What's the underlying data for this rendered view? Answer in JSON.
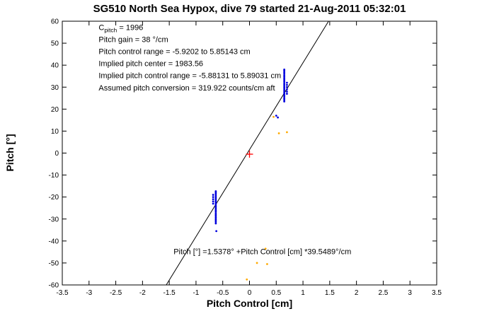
{
  "figure": {
    "title": "SG510 North Sea Hypox, dive 79 started 21-Aug-2011 05:32:01",
    "xlabel": "Pitch Control [cm]",
    "ylabel": "Pitch [°]"
  },
  "colors": {
    "axis": "#000000",
    "fit_line": "#000000",
    "primary_points": "#0000dd",
    "secondary_points": "#ffaa00",
    "center_marker": "#ff0000",
    "text": "#000000"
  },
  "chart_data": {
    "type": "scatter",
    "title": "SG510 North Sea Hypox, dive 79 started 21-Aug-2011 05:32:01",
    "xlabel": "Pitch Control [cm]",
    "ylabel": "Pitch [°]",
    "xlim": [
      -3.5,
      3.5
    ],
    "ylim": [
      -60,
      60
    ],
    "grid": false,
    "x_ticks": [
      -3.5,
      -3,
      -2.5,
      -2,
      -1.5,
      -1,
      -0.5,
      0,
      0.5,
      1,
      1.5,
      2,
      2.5,
      3,
      3.5
    ],
    "x_tick_labels": [
      "-3.5",
      "-3",
      "-2.5",
      "-2",
      "-1.5",
      "-1",
      "-0.5",
      "0",
      "0.5",
      "1",
      "1.5",
      "2",
      "2.5",
      "3",
      "3.5"
    ],
    "y_ticks": [
      -60,
      -50,
      -40,
      -30,
      -20,
      -10,
      0,
      10,
      20,
      30,
      40,
      50,
      60
    ],
    "y_tick_labels": [
      "-60",
      "-50",
      "-40",
      "-30",
      "-20",
      "-10",
      "0",
      "10",
      "20",
      "30",
      "40",
      "50",
      "60"
    ],
    "fit_line": {
      "slope": 39.5489,
      "intercept": 1.5378
    },
    "series": [
      {
        "name": "pitch-observations",
        "color": "#0000dd",
        "marker": "dot",
        "points": [
          [
            -0.63,
            -32
          ],
          [
            -0.63,
            -31.3
          ],
          [
            -0.63,
            -30.6
          ],
          [
            -0.63,
            -30
          ],
          [
            -0.63,
            -29.3
          ],
          [
            -0.63,
            -28.6
          ],
          [
            -0.63,
            -28
          ],
          [
            -0.63,
            -27.3
          ],
          [
            -0.63,
            -26.6
          ],
          [
            -0.63,
            -26
          ],
          [
            -0.63,
            -25.3
          ],
          [
            -0.63,
            -24.6
          ],
          [
            -0.63,
            -24
          ],
          [
            -0.63,
            -23.3
          ],
          [
            -0.63,
            -22.6
          ],
          [
            -0.63,
            -22
          ],
          [
            -0.63,
            -21.3
          ],
          [
            -0.63,
            -20.6
          ],
          [
            -0.63,
            -20
          ],
          [
            -0.63,
            -19.3
          ],
          [
            -0.63,
            -18.6
          ],
          [
            -0.63,
            -18
          ],
          [
            -0.63,
            -17.4
          ],
          [
            -0.68,
            -23
          ],
          [
            -0.68,
            -22
          ],
          [
            -0.68,
            -21
          ],
          [
            -0.68,
            -20
          ],
          [
            -0.68,
            -19
          ],
          [
            -0.62,
            -35.5
          ],
          [
            0.65,
            23.5
          ],
          [
            0.65,
            24.2
          ],
          [
            0.65,
            24.9
          ],
          [
            0.65,
            25.6
          ],
          [
            0.65,
            26.3
          ],
          [
            0.65,
            27
          ],
          [
            0.65,
            27.7
          ],
          [
            0.65,
            28.4
          ],
          [
            0.65,
            29.1
          ],
          [
            0.65,
            29.8
          ],
          [
            0.65,
            30.5
          ],
          [
            0.65,
            31.2
          ],
          [
            0.65,
            31.9
          ],
          [
            0.65,
            32.6
          ],
          [
            0.65,
            33.3
          ],
          [
            0.65,
            34
          ],
          [
            0.65,
            34.7
          ],
          [
            0.65,
            35.4
          ],
          [
            0.65,
            36.1
          ],
          [
            0.65,
            36.8
          ],
          [
            0.65,
            37.5
          ],
          [
            0.65,
            38
          ],
          [
            0.7,
            27
          ],
          [
            0.7,
            28
          ],
          [
            0.7,
            29
          ],
          [
            0.7,
            30
          ],
          [
            0.7,
            31
          ],
          [
            0.7,
            32
          ],
          [
            0.5,
            17
          ],
          [
            0.53,
            16.2
          ]
        ]
      },
      {
        "name": "secondary-observations",
        "color": "#ffaa00",
        "marker": "dot",
        "points": [
          [
            0.7,
            9.5
          ],
          [
            0.55,
            9
          ],
          [
            0.45,
            16.5
          ],
          [
            0.3,
            -43.5
          ],
          [
            0.33,
            -50.5
          ],
          [
            0.14,
            -50
          ],
          [
            -0.05,
            -57.5
          ]
        ]
      },
      {
        "name": "pitch-center-marker",
        "color": "#ff0000",
        "marker": "plus",
        "points": [
          [
            0,
            -0.5
          ]
        ]
      }
    ],
    "annotations": [
      {
        "x": -2.82,
        "y": 57,
        "segments": [
          {
            "t": "C"
          },
          {
            "t": "pitch",
            "sub": true
          },
          {
            "t": " = 1996"
          }
        ]
      },
      {
        "x": -2.82,
        "y": 51.5,
        "segments": [
          {
            "t": "Pitch gain = 38 °/cm"
          }
        ]
      },
      {
        "x": -2.82,
        "y": 46,
        "segments": [
          {
            "t": "Pitch control range = -5.9202 to 5.85143 cm"
          }
        ]
      },
      {
        "x": -2.82,
        "y": 40.5,
        "segments": [
          {
            "t": "Implied pitch center = 1983.56"
          }
        ]
      },
      {
        "x": -2.82,
        "y": 35,
        "segments": [
          {
            "t": "Implied pitch control range = -5.88131 to 5.89031 cm"
          }
        ]
      },
      {
        "x": -2.82,
        "y": 29.5,
        "segments": [
          {
            "t": "Assumed pitch conversion = 319.922 counts/cm aft"
          }
        ]
      },
      {
        "x": -1.42,
        "y": -45,
        "segments": [
          {
            "t": "Pitch [°] =1.5378° +Pitch Control [cm] *39.5489°/cm"
          }
        ]
      }
    ],
    "legend": null
  }
}
